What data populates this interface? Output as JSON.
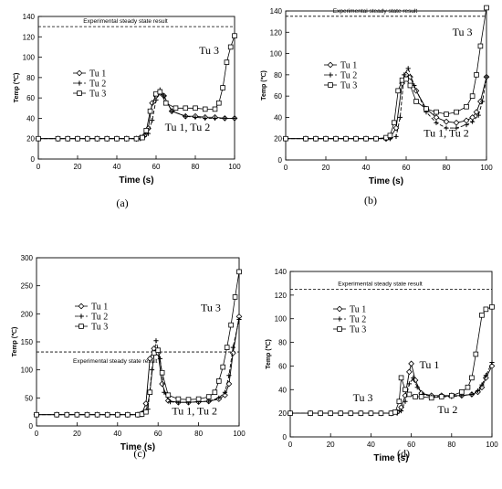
{
  "chart_data": [
    {
      "panel_label": "(a)",
      "type": "line",
      "xlabel": "Time (s)",
      "ylabel": "Temp (℃)",
      "xlim": [
        0,
        100
      ],
      "ylim": [
        0,
        140
      ],
      "xticks": [
        0,
        20,
        40,
        60,
        80,
        100
      ],
      "yticks": [
        0,
        20,
        40,
        60,
        80,
        100,
        120,
        140
      ],
      "reference_line": {
        "label": "Experimental steady state result",
        "y": 130
      },
      "legend": [
        "Tu 1",
        "Tu 2",
        "Tu 3"
      ],
      "legend_position": "center-left",
      "annotations": [
        {
          "text": "Tu 3",
          "x": 87,
          "y": 103
        },
        {
          "text": "Tu 1, Tu 2",
          "x": 76,
          "y": 28
        }
      ],
      "series": [
        {
          "name": "Tu 1",
          "marker": "diamond",
          "dash": "solid",
          "x": [
            0,
            10,
            15,
            20,
            25,
            30,
            35,
            40,
            45,
            50,
            52,
            54,
            56,
            58,
            60,
            62,
            64,
            68,
            75,
            80,
            85,
            90,
            95,
            100
          ],
          "y": [
            20,
            20,
            20,
            20,
            20,
            20,
            20,
            20,
            20,
            20,
            21,
            23,
            30,
            55,
            62,
            65,
            62,
            47,
            42,
            42,
            41,
            41,
            40,
            40
          ]
        },
        {
          "name": "Tu 2",
          "marker": "plus",
          "dash": "dash",
          "x": [
            0,
            10,
            15,
            20,
            25,
            30,
            35,
            40,
            45,
            50,
            52,
            54,
            56,
            58,
            60,
            62,
            64,
            68,
            75,
            80,
            85,
            90,
            95,
            100
          ],
          "y": [
            20,
            20,
            20,
            20,
            20,
            20,
            20,
            20,
            20,
            20,
            20,
            22,
            25,
            38,
            58,
            68,
            62,
            47,
            42,
            41,
            40,
            40,
            40,
            40
          ]
        },
        {
          "name": "Tu 3",
          "marker": "square",
          "dash": "solid",
          "x": [
            0,
            10,
            15,
            20,
            25,
            30,
            35,
            40,
            45,
            50,
            53,
            55,
            57,
            60,
            62,
            65,
            70,
            75,
            80,
            85,
            90,
            92,
            94,
            96,
            98,
            100
          ],
          "y": [
            20,
            20,
            20,
            20,
            20,
            20,
            20,
            20,
            20,
            20,
            21,
            28,
            47,
            64,
            66,
            55,
            50,
            50,
            50,
            49,
            49,
            55,
            70,
            95,
            110,
            121
          ]
        }
      ]
    },
    {
      "panel_label": "(b)",
      "type": "line",
      "xlabel": "Time (s)",
      "ylabel": "Temp (℃)",
      "xlim": [
        0,
        100
      ],
      "ylim": [
        0,
        140
      ],
      "xticks": [
        0,
        20,
        40,
        60,
        80,
        100
      ],
      "yticks": [
        0,
        20,
        40,
        60,
        80,
        100,
        120,
        140
      ],
      "reference_line": {
        "label": "Experimental steady state result",
        "y": 135
      },
      "legend": [
        "Tu 1",
        "Tu 2",
        "Tu 3"
      ],
      "legend_position": "center-left",
      "annotations": [
        {
          "text": "Tu 3",
          "x": 88,
          "y": 117
        },
        {
          "text": "Tu 1, Tu 2",
          "x": 80,
          "y": 22
        }
      ],
      "series": [
        {
          "name": "Tu 1",
          "marker": "diamond",
          "dash": "solid",
          "x": [
            0,
            10,
            15,
            20,
            25,
            30,
            35,
            40,
            45,
            50,
            52,
            55,
            58,
            60,
            62,
            65,
            70,
            75,
            80,
            85,
            90,
            93,
            95,
            97,
            100
          ],
          "y": [
            20,
            20,
            20,
            20,
            20,
            20,
            20,
            20,
            20,
            20,
            21,
            30,
            72,
            80,
            78,
            65,
            48,
            40,
            36,
            35,
            37,
            40,
            45,
            55,
            78
          ]
        },
        {
          "name": "Tu 2",
          "marker": "plus",
          "dash": "dash",
          "x": [
            0,
            10,
            15,
            20,
            25,
            30,
            35,
            40,
            45,
            50,
            52,
            55,
            57,
            59,
            61,
            64,
            70,
            75,
            80,
            85,
            90,
            93,
            96,
            98,
            100
          ],
          "y": [
            20,
            20,
            20,
            20,
            20,
            20,
            20,
            20,
            20,
            20,
            20,
            22,
            40,
            80,
            86,
            70,
            45,
            35,
            30,
            30,
            33,
            36,
            42,
            55,
            78
          ]
        },
        {
          "name": "Tu 3",
          "marker": "square",
          "dash": "solid",
          "x": [
            0,
            10,
            15,
            20,
            25,
            30,
            35,
            40,
            45,
            50,
            52,
            54,
            56,
            58,
            60,
            62,
            65,
            70,
            75,
            80,
            85,
            90,
            93,
            95,
            97,
            100
          ],
          "y": [
            20,
            20,
            20,
            20,
            20,
            20,
            20,
            20,
            20,
            21,
            23,
            35,
            65,
            75,
            76,
            70,
            55,
            48,
            45,
            43,
            45,
            50,
            60,
            80,
            107,
            143
          ]
        }
      ]
    },
    {
      "panel_label": "(c)",
      "type": "line",
      "xlabel": "Time (s)",
      "ylabel": "Temp (℃)",
      "xlim": [
        0,
        100
      ],
      "ylim": [
        0,
        300
      ],
      "xticks": [
        0,
        20,
        40,
        60,
        80,
        100
      ],
      "yticks": [
        0,
        50,
        100,
        150,
        200,
        250,
        300
      ],
      "reference_line": {
        "label": "Experimental steady state result",
        "y": 132
      },
      "legend": [
        "Tu 1",
        "Tu 2",
        "Tu 3"
      ],
      "legend_position": "center-left",
      "annotations": [
        {
          "text": "Tu 3",
          "x": 86,
          "y": 205
        },
        {
          "text": "Tu 1, Tu 2",
          "x": 78,
          "y": 20
        }
      ],
      "series": [
        {
          "name": "Tu 1",
          "marker": "diamond",
          "dash": "solid",
          "x": [
            0,
            10,
            15,
            20,
            25,
            30,
            35,
            40,
            45,
            50,
            52,
            54,
            56,
            58,
            60,
            62,
            65,
            70,
            75,
            80,
            85,
            90,
            93,
            95,
            97,
            100
          ],
          "y": [
            20,
            20,
            20,
            20,
            20,
            20,
            20,
            20,
            20,
            20,
            22,
            40,
            120,
            138,
            130,
            75,
            45,
            42,
            42,
            43,
            44,
            48,
            55,
            75,
            130,
            195
          ]
        },
        {
          "name": "Tu 2",
          "marker": "plus",
          "dash": "dash",
          "x": [
            0,
            10,
            15,
            20,
            25,
            30,
            35,
            40,
            45,
            50,
            52,
            55,
            57,
            59,
            61,
            63,
            66,
            70,
            75,
            80,
            85,
            90,
            93,
            95,
            97,
            100
          ],
          "y": [
            20,
            20,
            20,
            20,
            20,
            20,
            20,
            20,
            20,
            20,
            20,
            30,
            100,
            152,
            120,
            60,
            43,
            42,
            42,
            43,
            44,
            50,
            60,
            90,
            140,
            190
          ]
        },
        {
          "name": "Tu 3",
          "marker": "square",
          "dash": "solid",
          "x": [
            0,
            10,
            15,
            20,
            25,
            30,
            35,
            40,
            45,
            50,
            52,
            54,
            56,
            58,
            60,
            62,
            65,
            70,
            75,
            80,
            85,
            88,
            90,
            92,
            94,
            96,
            98,
            100
          ],
          "y": [
            20,
            20,
            20,
            20,
            20,
            20,
            20,
            20,
            20,
            20,
            21,
            25,
            60,
            130,
            135,
            95,
            55,
            48,
            47,
            48,
            52,
            60,
            80,
            105,
            140,
            180,
            230,
            275
          ]
        }
      ]
    },
    {
      "panel_label": "(d)",
      "type": "line",
      "xlabel": "Time (s)",
      "ylabel": "Temp (℃)",
      "xlim": [
        0,
        100
      ],
      "ylim": [
        0,
        140
      ],
      "xticks": [
        0,
        20,
        40,
        60,
        80,
        100
      ],
      "yticks": [
        0,
        20,
        40,
        60,
        80,
        100,
        120,
        140
      ],
      "reference_line": {
        "label": "Experimental steady state result",
        "y": 125
      },
      "legend": [
        "Tu 1",
        "Tu 2",
        "Tu 3"
      ],
      "legend_position": "center-left",
      "annotations": [
        {
          "text": "Tu 1",
          "x": 69,
          "y": 58
        },
        {
          "text": "Tu 3",
          "x": 36,
          "y": 30
        },
        {
          "text": "Tu 2",
          "x": 78,
          "y": 20
        }
      ],
      "series": [
        {
          "name": "Tu 1",
          "marker": "diamond",
          "dash": "solid",
          "x": [
            0,
            10,
            15,
            20,
            25,
            30,
            35,
            40,
            45,
            50,
            53,
            55,
            57,
            59,
            60,
            62,
            65,
            70,
            75,
            80,
            85,
            90,
            93,
            95,
            97,
            100
          ],
          "y": [
            20,
            20,
            20,
            20,
            20,
            20,
            20,
            20,
            20,
            20,
            21,
            25,
            35,
            55,
            62,
            48,
            37,
            35,
            35,
            35,
            35,
            36,
            38,
            42,
            50,
            60
          ]
        },
        {
          "name": "Tu 2",
          "marker": "plus",
          "dash": "dash",
          "x": [
            0,
            10,
            15,
            20,
            25,
            30,
            35,
            40,
            45,
            50,
            53,
            55,
            57,
            59,
            61,
            63,
            66,
            70,
            75,
            80,
            85,
            90,
            93,
            95,
            97,
            100
          ],
          "y": [
            20,
            20,
            20,
            20,
            20,
            20,
            20,
            20,
            20,
            20,
            20,
            22,
            30,
            45,
            50,
            42,
            36,
            34,
            34,
            34,
            35,
            36,
            39,
            44,
            52,
            63
          ]
        },
        {
          "name": "Tu 3",
          "marker": "square",
          "dash": "solid",
          "x": [
            0,
            10,
            15,
            20,
            25,
            30,
            35,
            40,
            45,
            50,
            52,
            54,
            55,
            57,
            59,
            62,
            65,
            70,
            75,
            80,
            85,
            88,
            90,
            92,
            95,
            97,
            100
          ],
          "y": [
            20,
            20,
            20,
            20,
            20,
            20,
            20,
            20,
            20,
            20,
            21,
            30,
            50,
            40,
            36,
            34,
            34,
            33,
            34,
            35,
            38,
            42,
            50,
            70,
            103,
            108,
            110
          ]
        }
      ]
    }
  ]
}
